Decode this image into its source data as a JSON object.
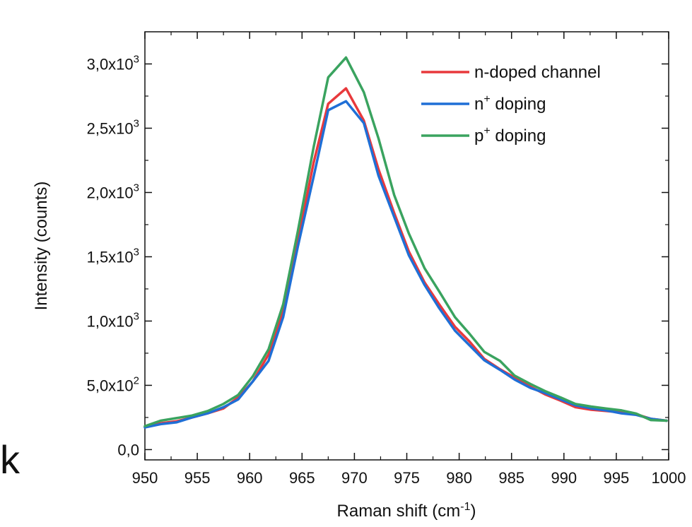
{
  "edge_text": "k",
  "chart_data": {
    "type": "line",
    "xlabel": "Raman shift (cm",
    "xlabel_sup": "-1",
    "xlabel_end": ")",
    "ylabel": "Intensity (counts)",
    "xlim": [
      950,
      1000
    ],
    "ylim": [
      -80,
      3250
    ],
    "x_ticks": [
      {
        "value": 950,
        "label": "950"
      },
      {
        "value": 955,
        "label": "955"
      },
      {
        "value": 960,
        "label": "960"
      },
      {
        "value": 965,
        "label": "965"
      },
      {
        "value": 970,
        "label": "970"
      },
      {
        "value": 975,
        "label": "975"
      },
      {
        "value": 980,
        "label": "980"
      },
      {
        "value": 985,
        "label": "985"
      },
      {
        "value": 990,
        "label": "990"
      },
      {
        "value": 995,
        "label": "995"
      },
      {
        "value": 1000,
        "label": "1000"
      }
    ],
    "y_ticks": [
      {
        "value": 0,
        "mant": "0,0",
        "exp": ""
      },
      {
        "value": 500,
        "mant": "5,0x10",
        "exp": "2"
      },
      {
        "value": 1000,
        "mant": "1,0x10",
        "exp": "3"
      },
      {
        "value": 1500,
        "mant": "1,5x10",
        "exp": "3"
      },
      {
        "value": 2000,
        "mant": "2,0x10",
        "exp": "3"
      },
      {
        "value": 2500,
        "mant": "2,5x10",
        "exp": "3"
      },
      {
        "value": 3000,
        "mant": "3,0x10",
        "exp": "3"
      }
    ],
    "legend_position": "top-right",
    "grid": false,
    "series": [
      {
        "name": "n-doped channel",
        "name_base": "n-doped channel",
        "name_sup": "",
        "name_rest": "",
        "color": "#e8393c",
        "x": [
          950,
          951.5,
          953,
          954.5,
          956,
          957.5,
          958.9,
          960.3,
          961.8,
          963.2,
          964.6,
          966.1,
          967.5,
          969.2,
          970.9,
          972.3,
          973.8,
          975.2,
          976.7,
          978.1,
          979.6,
          981,
          982.4,
          983.9,
          985.3,
          986.8,
          988.2,
          989.7,
          991.1,
          992.6,
          994,
          995.5,
          996.9,
          998.3,
          999.8
        ],
        "y": [
          178,
          205,
          220,
          250,
          282,
          320,
          405,
          530,
          740,
          1080,
          1620,
          2230,
          2690,
          2810,
          2560,
          2180,
          1840,
          1540,
          1300,
          1130,
          955,
          840,
          705,
          625,
          560,
          490,
          430,
          380,
          330,
          310,
          300,
          290,
          275,
          240,
          225
        ]
      },
      {
        "name": "n+ doping",
        "name_base": "n",
        "name_sup": "+",
        "name_rest": " doping",
        "color": "#1f6fd6",
        "x": [
          950,
          951.5,
          953,
          954.5,
          956,
          957.5,
          958.9,
          960.3,
          961.8,
          963.2,
          964.6,
          966.1,
          967.5,
          969.2,
          970.9,
          972.3,
          973.8,
          975.2,
          976.7,
          978.1,
          979.6,
          981,
          982.4,
          983.9,
          985.3,
          986.8,
          988.2,
          989.7,
          991.1,
          992.6,
          994,
          995.5,
          996.9,
          998.3,
          999.8
        ],
        "y": [
          172,
          198,
          212,
          250,
          282,
          330,
          390,
          530,
          690,
          1030,
          1580,
          2120,
          2640,
          2710,
          2540,
          2130,
          1810,
          1510,
          1280,
          1100,
          925,
          810,
          695,
          620,
          545,
          480,
          440,
          390,
          345,
          320,
          305,
          282,
          270,
          240,
          225
        ]
      },
      {
        "name": "p+ doping",
        "name_base": "p",
        "name_sup": "+",
        "name_rest": " doping",
        "color": "#3aa35f",
        "x": [
          950,
          951.5,
          953,
          954.5,
          956,
          957.5,
          958.9,
          960.3,
          961.8,
          963.2,
          964.6,
          966.1,
          967.5,
          969.2,
          970.9,
          972.3,
          973.8,
          975.2,
          976.7,
          978.1,
          979.6,
          981,
          982.4,
          983.9,
          985.3,
          986.8,
          988.2,
          989.7,
          991.1,
          992.6,
          994,
          995.5,
          996.9,
          998.3,
          999.8
        ],
        "y": [
          182,
          225,
          245,
          265,
          300,
          355,
          425,
          570,
          780,
          1130,
          1700,
          2350,
          2895,
          3050,
          2780,
          2420,
          1980,
          1680,
          1410,
          1230,
          1030,
          900,
          760,
          690,
          575,
          510,
          455,
          405,
          355,
          335,
          320,
          305,
          280,
          230,
          225
        ]
      }
    ]
  }
}
